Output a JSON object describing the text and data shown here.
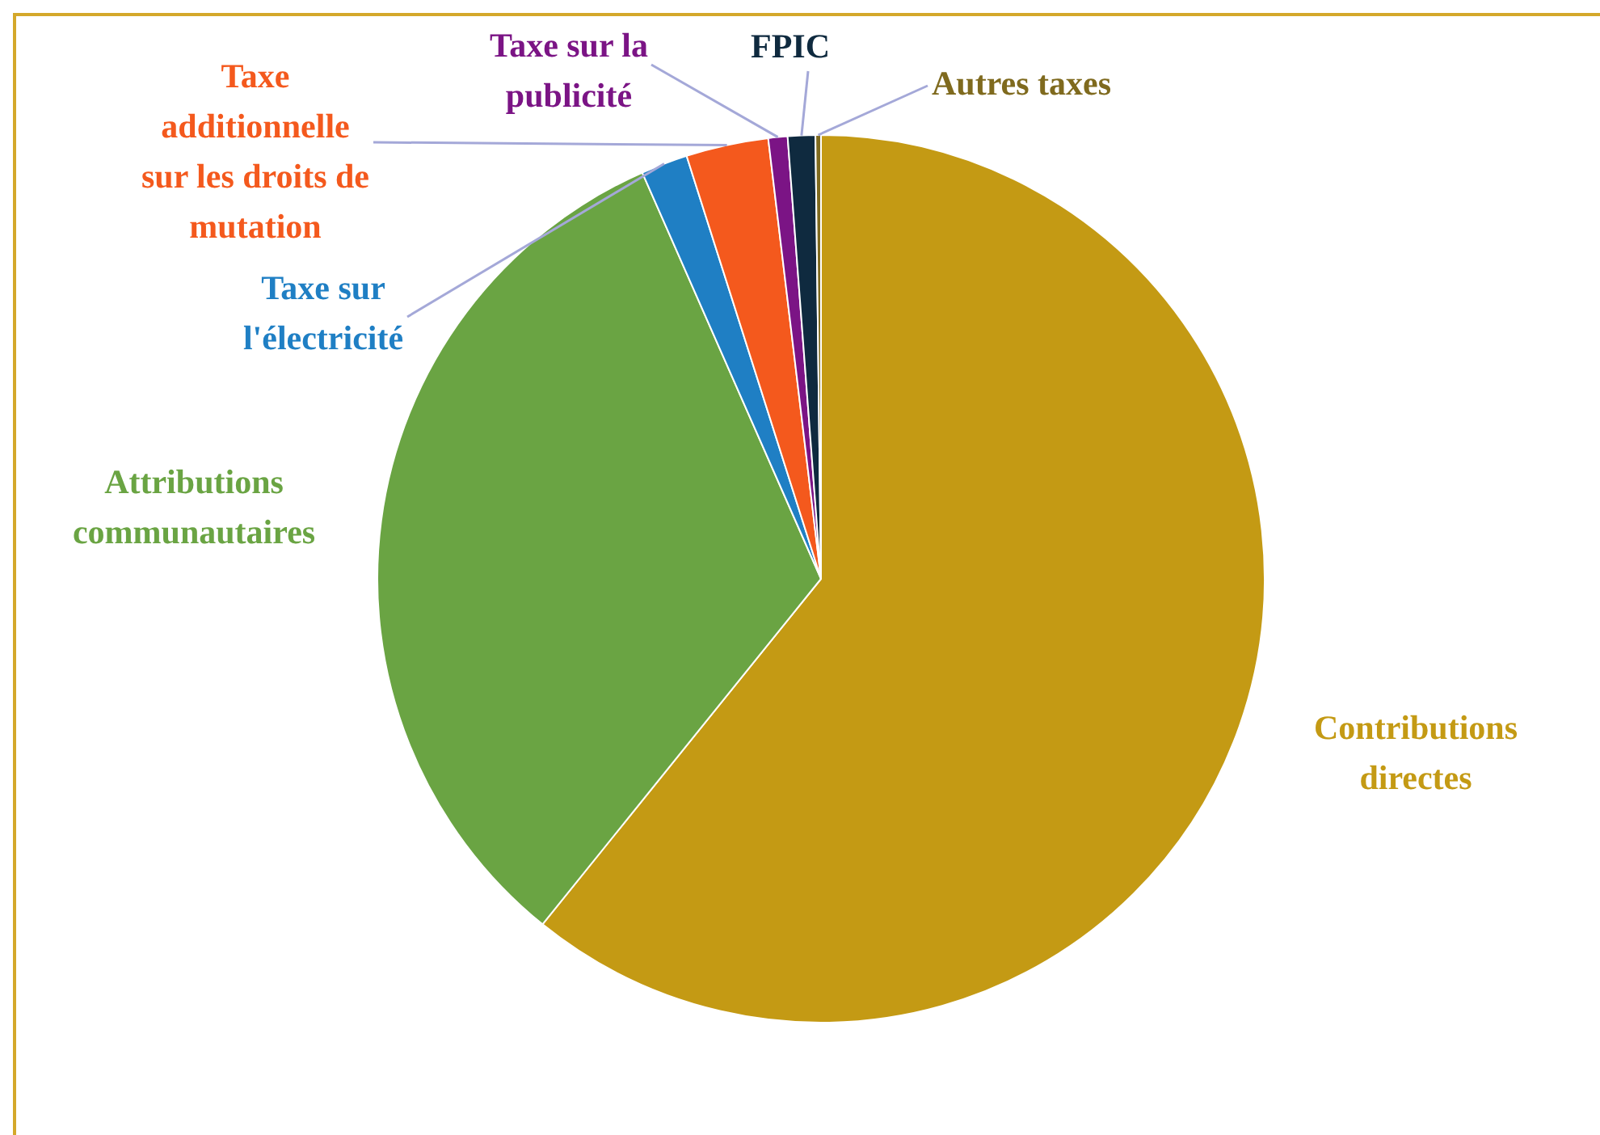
{
  "chart_data": {
    "type": "pie",
    "categories": [
      "Contributions directes",
      "Attributions communautaires",
      "Taxe sur l'électricité",
      "Taxe additionnelle sur les droits de mutation",
      "Taxe sur la publicité",
      "FPIC",
      "Autres taxes"
    ],
    "values": [
      60.8,
      32.6,
      1.7,
      3.0,
      0.7,
      1.0,
      0.2
    ],
    "colors": [
      "#c49a14",
      "#6aa443",
      "#1f7fc4",
      "#f4591d",
      "#7b1485",
      "#0f2a3f",
      "#7f6a1e"
    ],
    "legend": false
  }
}
